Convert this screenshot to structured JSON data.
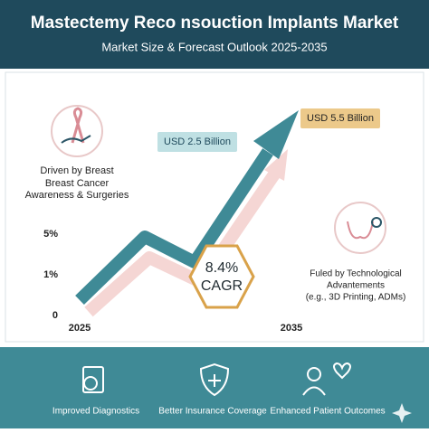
{
  "header": {
    "title": "Mastectemy Reco nsouction Implants Market",
    "subtitle": "Market Size & Forecast Outlook 2025-2035"
  },
  "left_note": {
    "lines": [
      "Driven by Breast",
      "Breast Cancer",
      "Awareness & Surgeries"
    ]
  },
  "callouts": [
    "USD 2.5 Billion",
    "USD 5.5 Billion"
  ],
  "axis": {
    "y_labels": [
      "5%",
      "1%",
      "0"
    ],
    "x_labels": [
      "2025",
      "2035"
    ]
  },
  "cagr": {
    "value": "8.4%",
    "label": "CAGR"
  },
  "right_note": {
    "lines": [
      "Fuled by Technological",
      "Advantements",
      "(e.g., 3D Printing, ADMs)"
    ]
  },
  "footer": {
    "items": [
      "Improved Diagnostics",
      "Better Insurance Coverage",
      "Enhanced Patient Outcomes"
    ]
  }
}
